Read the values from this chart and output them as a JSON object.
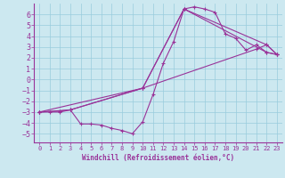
{
  "xlabel": "Windchill (Refroidissement éolien,°C)",
  "bg_color": "#cce8f0",
  "grid_color": "#99ccdd",
  "line_color": "#993399",
  "xlim": [
    -0.5,
    23.5
  ],
  "ylim": [
    -5.8,
    7.0
  ],
  "xticks": [
    0,
    1,
    2,
    3,
    4,
    5,
    6,
    7,
    8,
    9,
    10,
    11,
    12,
    13,
    14,
    15,
    16,
    17,
    18,
    19,
    20,
    21,
    22,
    23
  ],
  "yticks": [
    -5,
    -4,
    -3,
    -2,
    -1,
    0,
    1,
    2,
    3,
    4,
    5,
    6
  ],
  "line1_x": [
    0,
    1,
    2,
    3,
    4,
    5,
    6,
    7,
    8,
    9,
    10,
    11,
    12,
    13,
    14,
    15,
    16,
    17,
    18,
    19,
    20,
    21,
    22,
    23
  ],
  "line1_y": [
    -3,
    -3,
    -3,
    -2.8,
    -4.1,
    -4.1,
    -4.2,
    -4.5,
    -4.7,
    -5.0,
    -3.9,
    -1.4,
    1.5,
    3.5,
    6.5,
    6.7,
    6.5,
    6.2,
    4.2,
    3.8,
    2.7,
    3.2,
    2.5,
    2.3
  ],
  "line2_x": [
    0,
    2,
    3,
    10,
    21,
    22,
    23
  ],
  "line2_y": [
    -3,
    -2.9,
    -2.8,
    -0.8,
    2.8,
    3.2,
    2.3
  ],
  "line3_x": [
    0,
    10,
    14,
    22,
    23
  ],
  "line3_y": [
    -3,
    -0.8,
    6.5,
    3.2,
    2.3
  ],
  "line4_x": [
    0,
    3,
    10,
    14,
    22,
    23
  ],
  "line4_y": [
    -3,
    -2.8,
    -0.8,
    6.5,
    2.5,
    2.3
  ],
  "marker": "+"
}
